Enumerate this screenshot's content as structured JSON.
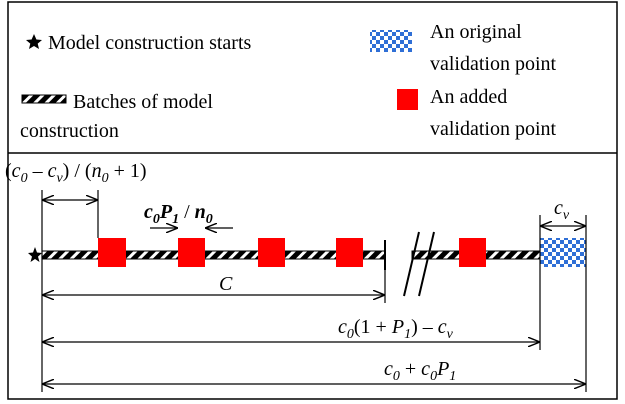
{
  "legend": {
    "start": "Model construction starts",
    "original": [
      "An original",
      "validation point"
    ],
    "batches": [
      "Batches of model",
      "construction"
    ],
    "added": [
      "An added",
      "validation point"
    ]
  },
  "annotations": {
    "gap": [
      "(",
      "c",
      "0",
      " – ",
      "c",
      "v",
      ") / (",
      "n",
      "0",
      " + 1)"
    ],
    "step": [
      "c",
      "0",
      "P",
      "1",
      " / ",
      "n",
      "0"
    ],
    "span": [
      "C"
    ],
    "cv": [
      "c",
      "v"
    ],
    "end": [
      "c",
      "0",
      "(1 + ",
      "P",
      "1",
      ") – ",
      "c",
      "v"
    ],
    "total": [
      "c",
      "0",
      " + ",
      "c",
      "0",
      "P",
      "1"
    ]
  }
}
